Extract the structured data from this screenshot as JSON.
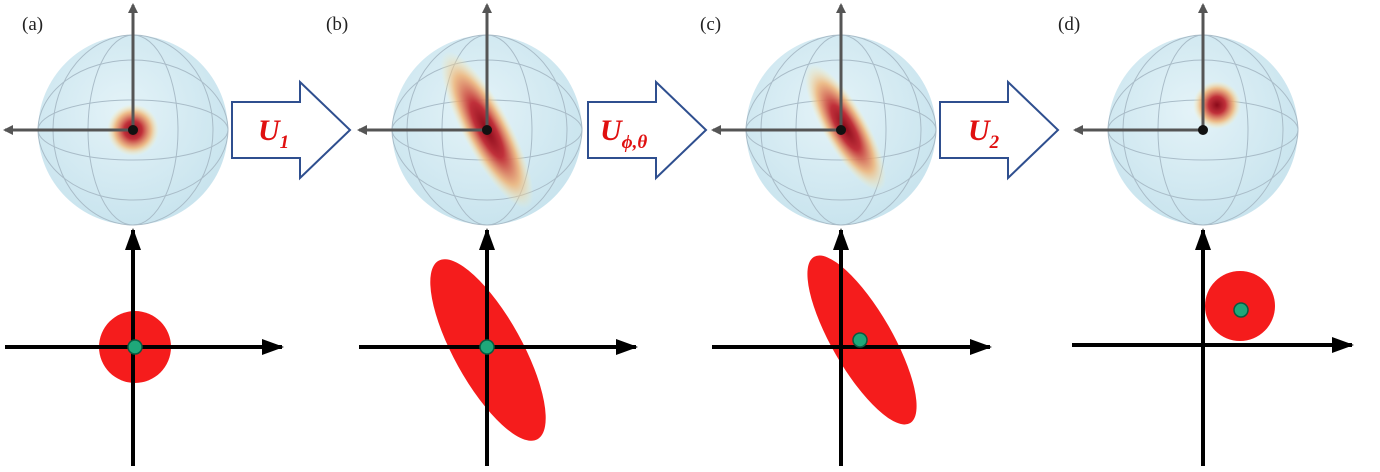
{
  "panels": [
    {
      "label": "(a)"
    },
    {
      "label": "(b)"
    },
    {
      "label": "(c)"
    },
    {
      "label": "(d)"
    }
  ],
  "operations": [
    {
      "symbol": "U",
      "subscript": "1"
    },
    {
      "symbol": "U",
      "subscript": "ϕ,θ"
    },
    {
      "symbol": "U",
      "subscript": "2"
    }
  ]
}
